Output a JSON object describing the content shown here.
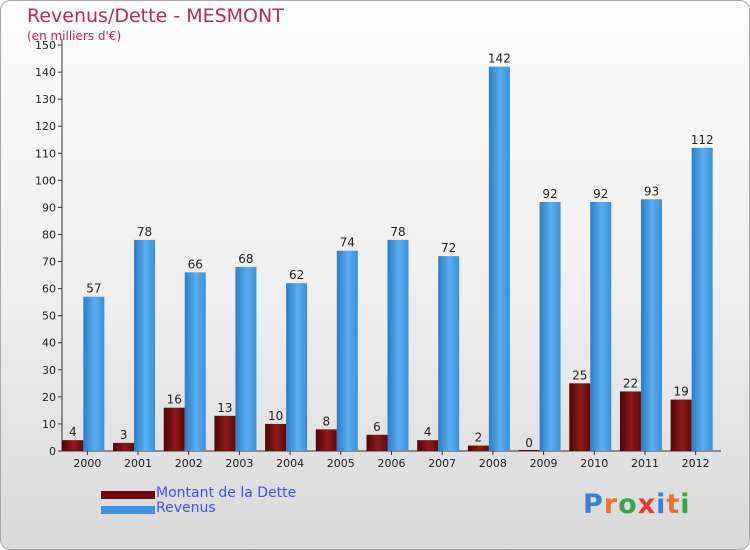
{
  "title": "Revenus/Dette - MESMONT",
  "subtitle": "(en milliers d'€)",
  "logo": {
    "text": "Proxiti",
    "letters": [
      "P",
      "r",
      "o",
      "x",
      "i",
      "t",
      "i"
    ],
    "colors": [
      "#3a7fd1",
      "#e8732a",
      "#3aa64a",
      "#e83a3a",
      "#3a7fd1",
      "#e8732a",
      "#3aa64a"
    ]
  },
  "chart_data": {
    "type": "bar",
    "title": "Revenus/Dette - MESMONT",
    "ylabel": "(en milliers d'€)",
    "xlabel": "",
    "ylim": [
      0,
      150
    ],
    "yticks": [
      0,
      10,
      20,
      30,
      40,
      50,
      60,
      70,
      80,
      90,
      100,
      110,
      120,
      130,
      140,
      150
    ],
    "grid": false,
    "legend_position": "bottom-left",
    "categories": [
      "2000",
      "2001",
      "2002",
      "2003",
      "2004",
      "2005",
      "2006",
      "2007",
      "2008",
      "2009",
      "2010",
      "2011",
      "2012"
    ],
    "series": [
      {
        "name": "Montant de la Dette",
        "color": "#6b0b0b",
        "values": [
          4,
          3,
          16,
          13,
          10,
          8,
          6,
          4,
          2,
          0,
          25,
          22,
          19
        ]
      },
      {
        "name": "Revenus",
        "color": "#3b93dd",
        "values": [
          57,
          78,
          66,
          68,
          62,
          74,
          78,
          72,
          142,
          92,
          92,
          93,
          112
        ]
      }
    ]
  }
}
